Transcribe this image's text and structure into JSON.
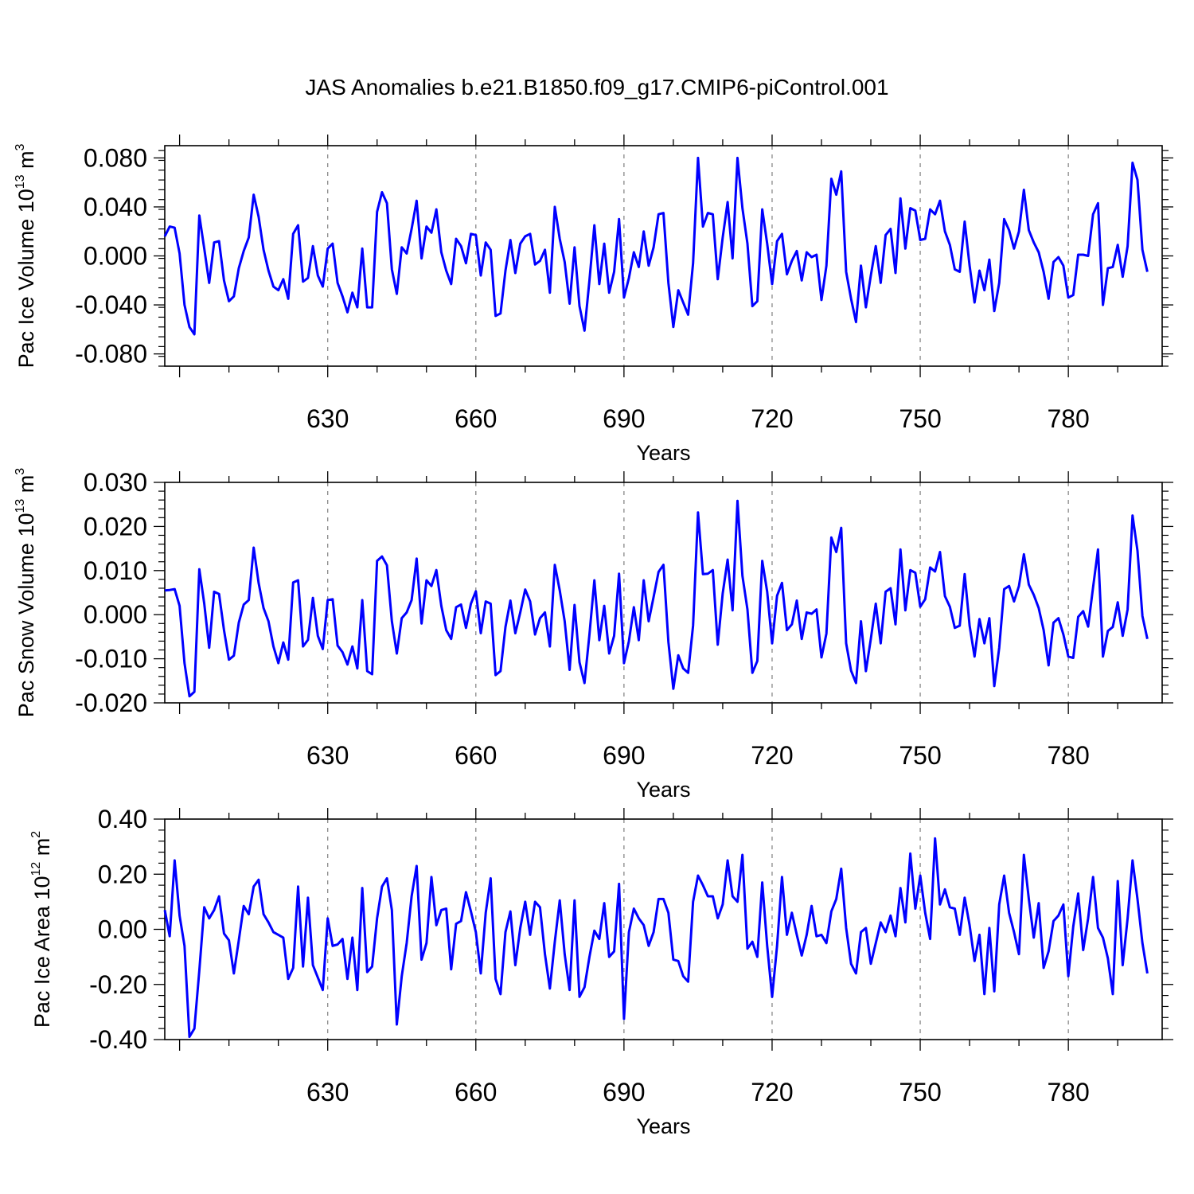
{
  "title": "JAS Anomalies b.e21.B1850.f09_g17.CMIP6-piControl.001",
  "colors": {
    "line": "#0000ff",
    "axis": "#000000",
    "grid": "#888888"
  },
  "chart_data": [
    {
      "type": "line",
      "ylabel_main": "Pac Ice Volume 10",
      "ylabel_exp": "13",
      "ylabel_unit": " m",
      "ylabel_unit_exp": "3",
      "xlabel": "Years",
      "xlim": [
        597,
        799
      ],
      "ylim": [
        -0.09,
        0.09
      ],
      "xticks": [
        630,
        660,
        690,
        720,
        750,
        780
      ],
      "yticks": [
        -0.08,
        -0.04,
        0.0,
        0.04,
        0.08
      ],
      "ytick_labels": [
        "-0.080",
        "-0.040",
        "0.000",
        "0.040",
        "0.080"
      ],
      "grid": "vertical dashed at major x ticks",
      "series": [
        {
          "x_start": 597,
          "values": [
            0.016,
            0.024,
            0.023,
            0.002,
            -0.04,
            -0.058,
            -0.064,
            0.033,
            0.006,
            -0.022,
            0.011,
            0.012,
            -0.02,
            -0.037,
            -0.033,
            -0.01,
            0.004,
            0.015,
            0.05,
            0.032,
            0.005,
            -0.012,
            -0.025,
            -0.028,
            -0.019,
            -0.035,
            0.018,
            0.025,
            -0.021,
            -0.018,
            0.008,
            -0.016,
            -0.025,
            0.006,
            0.01,
            -0.022,
            -0.033,
            -0.046,
            -0.03,
            -0.042,
            0.006,
            -0.042,
            -0.042,
            0.036,
            0.052,
            0.043,
            -0.011,
            -0.031,
            0.007,
            0.002,
            0.022,
            0.045,
            -0.002,
            0.024,
            0.019,
            0.038,
            0.003,
            -0.012,
            -0.023,
            0.014,
            0.008,
            -0.006,
            0.018,
            0.017,
            -0.016,
            0.011,
            0.005,
            -0.049,
            -0.047,
            -0.012,
            0.013,
            -0.014,
            0.01,
            0.016,
            0.018,
            -0.007,
            -0.004,
            0.005,
            -0.03,
            0.04,
            0.014,
            -0.005,
            -0.039,
            0.007,
            -0.041,
            -0.061,
            -0.02,
            0.025,
            -0.023,
            0.01,
            -0.03,
            -0.013,
            0.03,
            -0.034,
            -0.018,
            0.003,
            -0.009,
            0.02,
            -0.008,
            0.007,
            0.034,
            0.035,
            -0.022,
            -0.058,
            -0.028,
            -0.038,
            -0.048,
            -0.006,
            0.08,
            0.024,
            0.035,
            0.034,
            -0.019,
            0.015,
            0.044,
            -0.002,
            0.08,
            0.039,
            0.01,
            -0.041,
            -0.037,
            0.038,
            0.01,
            -0.023,
            0.012,
            0.018,
            -0.015,
            -0.004,
            0.004,
            -0.02,
            0.003,
            -0.001,
            0.001,
            -0.036,
            -0.008,
            0.063,
            0.05,
            0.069,
            -0.013,
            -0.035,
            -0.054,
            -0.008,
            -0.042,
            -0.016,
            0.008,
            -0.022,
            0.017,
            0.022,
            -0.014,
            0.047,
            0.006,
            0.039,
            0.037,
            0.013,
            0.014,
            0.038,
            0.034,
            0.045,
            0.02,
            0.009,
            -0.011,
            -0.013,
            0.028,
            -0.008,
            -0.038,
            -0.012,
            -0.028,
            -0.003,
            -0.045,
            -0.022,
            0.03,
            0.021,
            0.006,
            0.02,
            0.054,
            0.021,
            0.011,
            0.003,
            -0.013,
            -0.035,
            -0.005,
            -0.001,
            -0.008,
            -0.034,
            -0.032,
            0.001,
            0.001,
            0.0,
            0.034,
            0.043,
            -0.04,
            -0.01,
            -0.009,
            0.009,
            -0.017,
            0.008,
            0.076,
            0.062,
            0.005,
            -0.013
          ]
        }
      ]
    },
    {
      "type": "line",
      "ylabel_main": "Pac Snow Volume 10",
      "ylabel_exp": "13",
      "ylabel_unit": " m",
      "ylabel_unit_exp": "3",
      "xlabel": "Years",
      "xlim": [
        597,
        799
      ],
      "ylim": [
        -0.02,
        0.03
      ],
      "xticks": [
        630,
        660,
        690,
        720,
        750,
        780
      ],
      "yticks": [
        -0.02,
        -0.01,
        0.0,
        0.01,
        0.02,
        0.03
      ],
      "ytick_labels": [
        "-0.020",
        "-0.010",
        "0.000",
        "0.010",
        "0.020",
        "0.030"
      ],
      "grid": "vertical dashed at major x ticks",
      "series": [
        {
          "x_start": 597,
          "values": [
            0.0055,
            0.0056,
            0.0058,
            0.002,
            -0.011,
            -0.0185,
            -0.0175,
            0.0103,
            0.0025,
            -0.0075,
            0.0052,
            0.0047,
            -0.0035,
            -0.0102,
            -0.0093,
            -0.0018,
            0.0023,
            0.0033,
            0.0152,
            0.0072,
            0.0015,
            -0.0015,
            -0.0072,
            -0.011,
            -0.0063,
            -0.0102,
            0.0073,
            0.0078,
            -0.0072,
            -0.0057,
            0.0038,
            -0.0048,
            -0.0078,
            0.0033,
            0.0035,
            -0.007,
            -0.0085,
            -0.0113,
            -0.0072,
            -0.0122,
            0.0033,
            -0.0128,
            -0.0135,
            0.0122,
            0.0132,
            0.0112,
            -0.0015,
            -0.0088,
            -0.0008,
            0.0005,
            0.0033,
            0.0127,
            -0.002,
            0.0078,
            0.0065,
            0.0101,
            0.002,
            -0.0035,
            -0.0055,
            0.0017,
            0.0023,
            -0.003,
            0.0025,
            0.0053,
            -0.0042,
            0.003,
            0.0025,
            -0.0137,
            -0.0128,
            -0.0028,
            0.0032,
            -0.0042,
            0.0005,
            0.0057,
            0.003,
            -0.0045,
            -0.0008,
            0.0005,
            -0.0072,
            0.0113,
            0.0055,
            -0.0015,
            -0.0125,
            0.0022,
            -0.0108,
            -0.0155,
            -0.0045,
            0.0078,
            -0.0058,
            0.002,
            -0.0088,
            -0.0048,
            0.0093,
            -0.011,
            -0.006,
            0.0017,
            -0.0058,
            0.0078,
            -0.0015,
            0.004,
            0.0097,
            0.0113,
            -0.0062,
            -0.0168,
            -0.0092,
            -0.0122,
            -0.0132,
            -0.0025,
            0.0232,
            0.0092,
            0.0093,
            0.0101,
            -0.0068,
            0.0048,
            0.0125,
            0.001,
            0.0258,
            0.0088,
            0.0012,
            -0.0132,
            -0.0105,
            0.0122,
            0.0052,
            -0.0065,
            0.0043,
            0.0072,
            -0.0035,
            -0.0022,
            0.0032,
            -0.0055,
            0.0005,
            0.0002,
            0.0012,
            -0.0097,
            -0.0043,
            0.0175,
            0.0142,
            0.0197,
            -0.0065,
            -0.0127,
            -0.0155,
            -0.0015,
            -0.0128,
            -0.0055,
            0.0025,
            -0.0065,
            0.0052,
            0.006,
            -0.0022,
            0.0148,
            0.001,
            0.0101,
            0.0095,
            0.0018,
            0.0035,
            0.0107,
            0.0098,
            0.0142,
            0.0042,
            0.0018,
            -0.003,
            -0.0025,
            0.0092,
            -0.0025,
            -0.0095,
            -0.001,
            -0.0065,
            -0.0008,
            -0.0162,
            -0.0075,
            0.0058,
            0.0065,
            0.003,
            0.0065,
            0.0137,
            0.0068,
            0.0045,
            0.0015,
            -0.0035,
            -0.0115,
            -0.0018,
            -0.0008,
            -0.0045,
            -0.0095,
            -0.0098,
            -0.0005,
            0.0008,
            -0.0027,
            0.0062,
            0.0148,
            -0.0095,
            -0.0037,
            -0.0028,
            0.0028,
            -0.0048,
            0.0012,
            0.0225,
            0.0145,
            -0.0003,
            -0.0055
          ]
        }
      ]
    },
    {
      "type": "line",
      "ylabel_main": "Pac Ice Area 10",
      "ylabel_exp": "12",
      "ylabel_unit": " m",
      "ylabel_unit_exp": "2",
      "xlabel": "Years",
      "xlim": [
        597,
        799
      ],
      "ylim": [
        -0.4,
        0.4
      ],
      "xticks": [
        630,
        660,
        690,
        720,
        750,
        780
      ],
      "yticks": [
        -0.4,
        -0.2,
        0.0,
        0.2,
        0.4
      ],
      "ytick_labels": [
        "-0.40",
        "-0.20",
        "0.00",
        "0.20",
        "0.40"
      ],
      "grid": "vertical dashed at major x ticks",
      "series": [
        {
          "x_start": 597,
          "values": [
            0.07,
            -0.025,
            0.25,
            0.05,
            -0.06,
            -0.39,
            -0.36,
            -0.15,
            0.08,
            0.04,
            0.07,
            0.12,
            -0.015,
            -0.04,
            -0.16,
            -0.04,
            0.085,
            0.055,
            0.155,
            0.18,
            0.055,
            0.025,
            -0.01,
            -0.02,
            -0.03,
            -0.18,
            -0.14,
            0.155,
            -0.135,
            0.115,
            -0.13,
            -0.175,
            -0.22,
            0.04,
            -0.06,
            -0.055,
            -0.035,
            -0.18,
            -0.03,
            -0.22,
            0.15,
            -0.155,
            -0.135,
            0.04,
            0.155,
            0.185,
            0.07,
            -0.345,
            -0.17,
            -0.05,
            0.12,
            0.23,
            -0.11,
            -0.05,
            0.19,
            0.015,
            0.07,
            0.075,
            -0.145,
            0.02,
            0.03,
            0.135,
            0.065,
            -0.01,
            -0.16,
            0.06,
            0.185,
            -0.18,
            -0.235,
            -0.01,
            0.065,
            -0.13,
            0.005,
            0.1,
            -0.02,
            0.1,
            0.08,
            -0.09,
            -0.215,
            -0.045,
            0.105,
            -0.09,
            -0.22,
            0.105,
            -0.245,
            -0.21,
            -0.1,
            -0.005,
            -0.035,
            0.095,
            -0.1,
            -0.08,
            0.165,
            -0.325,
            -0.01,
            0.075,
            0.04,
            0.015,
            -0.06,
            -0.01,
            0.11,
            0.11,
            0.06,
            -0.11,
            -0.115,
            -0.17,
            -0.19,
            0.1,
            0.195,
            0.16,
            0.12,
            0.12,
            0.04,
            0.09,
            0.25,
            0.12,
            0.1,
            0.27,
            -0.07,
            -0.045,
            -0.1,
            0.17,
            -0.06,
            -0.245,
            -0.06,
            0.19,
            -0.02,
            0.06,
            -0.02,
            -0.095,
            -0.02,
            0.085,
            -0.025,
            -0.02,
            -0.05,
            0.065,
            0.11,
            0.22,
            0.005,
            -0.125,
            -0.16,
            -0.01,
            0.005,
            -0.125,
            -0.05,
            0.025,
            -0.01,
            0.05,
            -0.025,
            0.15,
            0.025,
            0.275,
            0.075,
            0.195,
            0.06,
            -0.035,
            0.33,
            0.09,
            0.145,
            0.08,
            0.075,
            -0.02,
            0.115,
            0.015,
            -0.115,
            -0.02,
            -0.235,
            0.005,
            -0.225,
            0.09,
            0.195,
            0.06,
            -0.01,
            -0.09,
            0.27,
            0.11,
            -0.03,
            0.095,
            -0.14,
            -0.08,
            0.03,
            0.05,
            0.09,
            -0.17,
            0.01,
            0.13,
            -0.075,
            0.04,
            0.19,
            0.005,
            -0.03,
            -0.105,
            -0.235,
            0.175,
            -0.13,
            0.04,
            0.25,
            0.11,
            -0.05,
            -0.16
          ]
        }
      ]
    }
  ]
}
